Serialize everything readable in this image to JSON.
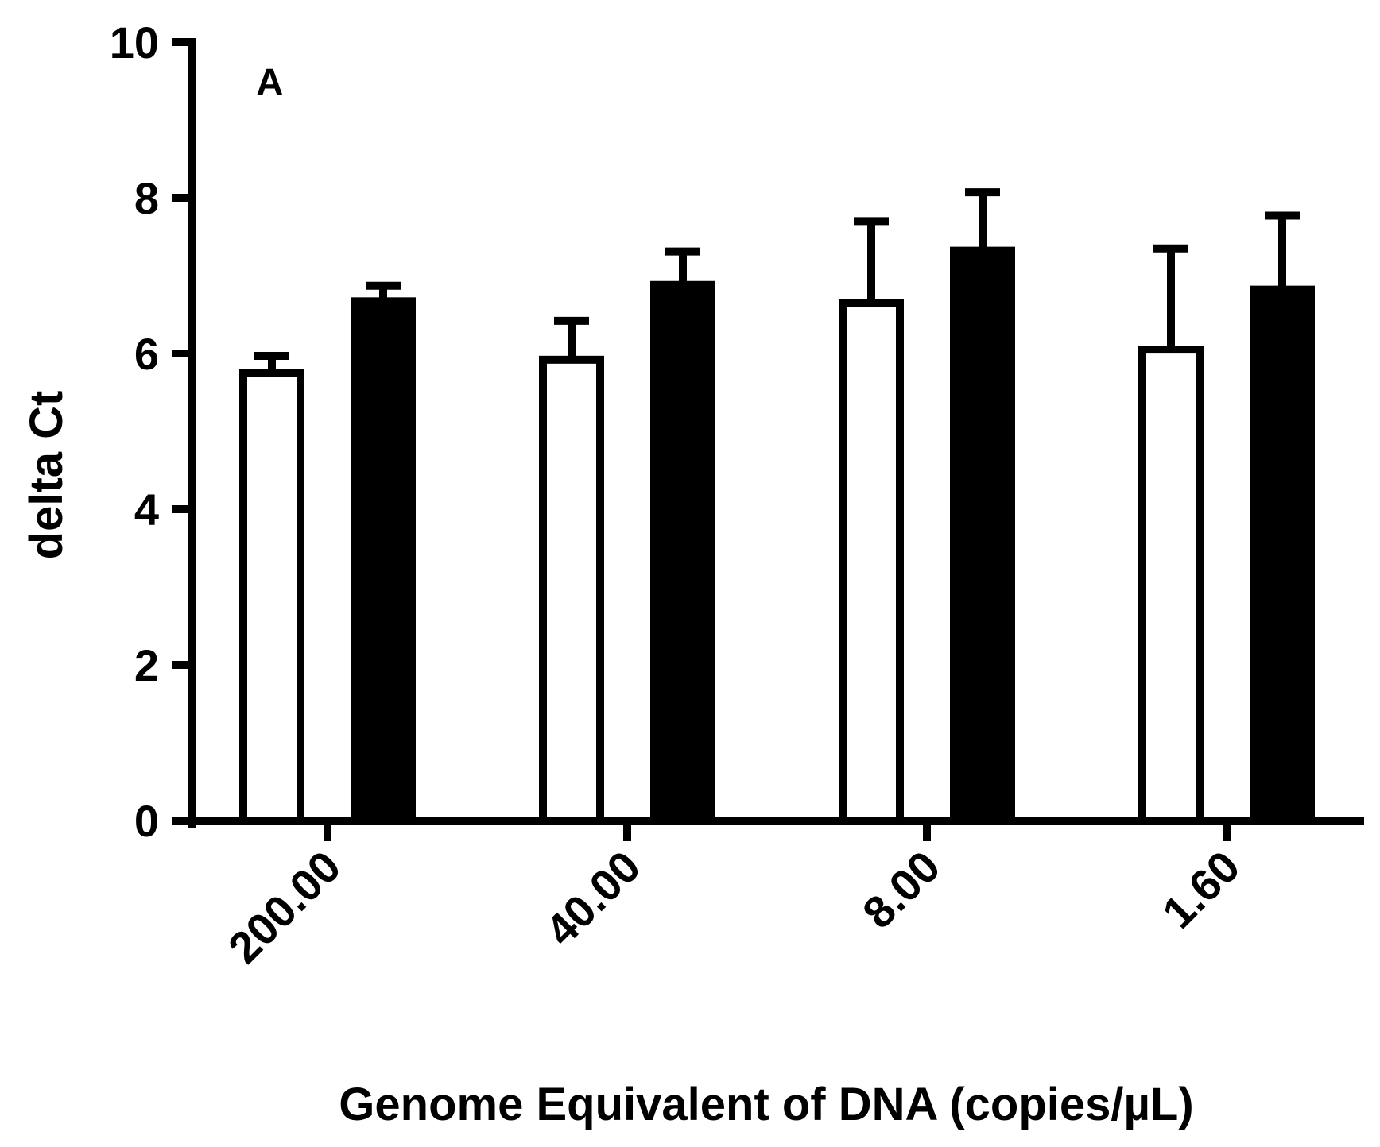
{
  "chart_data": {
    "type": "bar",
    "panel_label": "A",
    "xlabel": "Genome Equivalent of DNA (copies/µL)",
    "ylabel": "delta Ct",
    "ylim": [
      0,
      10
    ],
    "yticks": [
      "0",
      "2",
      "4",
      "6",
      "8",
      "10"
    ],
    "categories": [
      "200.00",
      "40.00",
      "8.00",
      "1.60"
    ],
    "series": [
      {
        "fill": "#ffffff",
        "values": [
          5.75,
          5.92,
          6.65,
          6.05
        ],
        "error": [
          0.22,
          0.5,
          1.05,
          1.3
        ]
      },
      {
        "fill": "#000000",
        "values": [
          6.67,
          6.88,
          7.32,
          6.82
        ],
        "error": [
          0.2,
          0.43,
          0.75,
          0.95
        ]
      }
    ],
    "grid": false,
    "legend": "none",
    "colors": {
      "axis": "#000000",
      "open_bar": "#ffffff",
      "filled_bar": "#000000"
    }
  }
}
